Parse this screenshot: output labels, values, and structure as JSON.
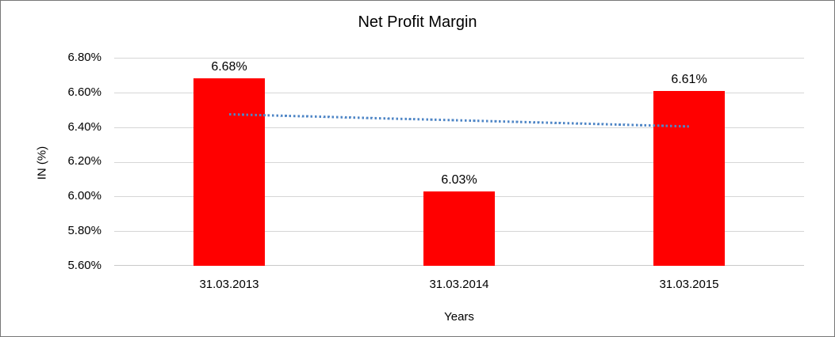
{
  "chart_data": {
    "type": "bar",
    "title": "Net Profit Margin",
    "xlabel": "Years",
    "ylabel": "IN (%)",
    "categories": [
      "31.03.2013",
      "31.03.2014",
      "31.03.2015"
    ],
    "values": [
      6.68,
      6.03,
      6.61
    ],
    "value_labels": [
      "6.68%",
      "6.03%",
      "6.61%"
    ],
    "yticks": [
      "6.80%",
      "6.60%",
      "6.40%",
      "6.20%",
      "6.00%",
      "5.80%",
      "5.60%"
    ],
    "ylim": [
      5.6,
      6.8
    ],
    "grid": true,
    "legend": "none",
    "bar_color": "#FF0000",
    "trendline": {
      "type": "linear",
      "style": "dotted",
      "color": "#4F86C6",
      "start_value": 6.475,
      "end_value": 6.405
    }
  }
}
